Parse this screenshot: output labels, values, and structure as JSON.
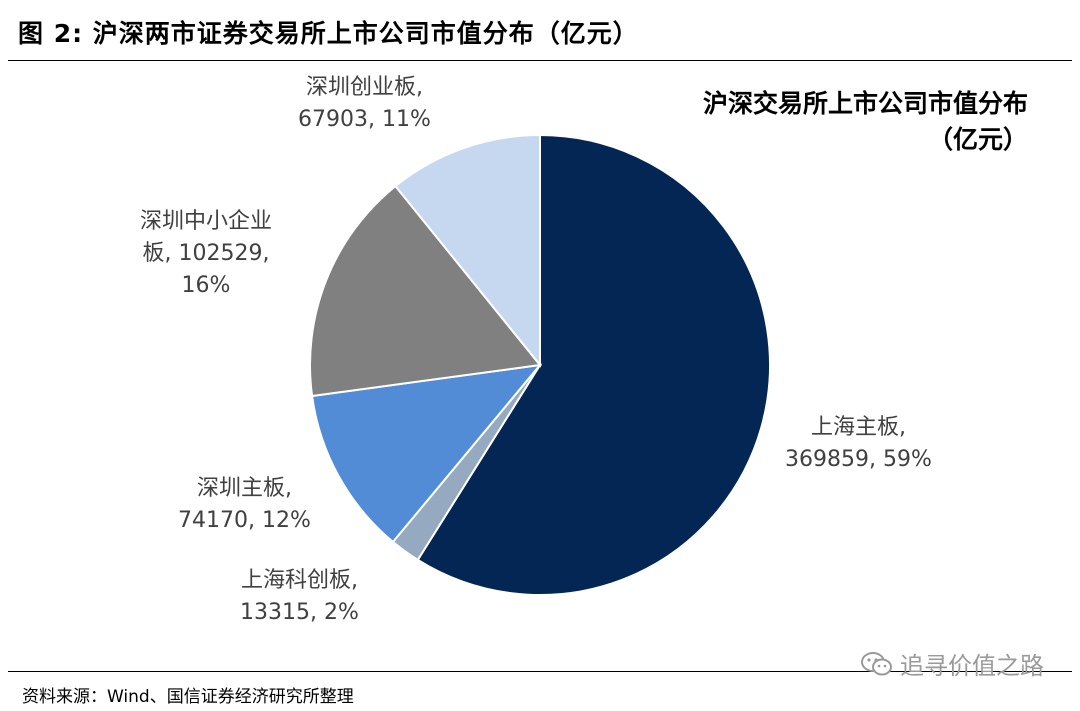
{
  "figure": {
    "title": "图 2:  沪深两市证券交易所上市公司市值分布（亿元）",
    "source": "资料来源：Wind、国信证券经济研究所整理",
    "watermark": "追寻价值之路"
  },
  "chart_data": {
    "type": "pie",
    "title_line1": "沪深交易所上市公司市值分布",
    "title_line2": "（亿元）",
    "start_angle": "12 o'clock",
    "direction": "clockwise",
    "slices": [
      {
        "name": "上海主板",
        "value": 369859,
        "percent": "59%",
        "color": "#032655",
        "label_line1": "上海主板,",
        "label_line2": "369859, 59%"
      },
      {
        "name": "上海科创板",
        "value": 13315,
        "percent": "2%",
        "color": "#95a9c0",
        "label_line1": "上海科创板,",
        "label_line2": "13315, 2%"
      },
      {
        "name": "深圳主板",
        "value": 74170,
        "percent": "12%",
        "color": "#528bd6",
        "label_line1": "深圳主板,",
        "label_line2": "74170, 12%"
      },
      {
        "name": "深圳中小企业板",
        "value": 102529,
        "percent": "16%",
        "color": "#808080",
        "label_line1": "深圳中小企业",
        "label_line2": "板, 102529,",
        "label_line3": "16%"
      },
      {
        "name": "深圳创业板",
        "value": 67903,
        "percent": "11%",
        "color": "#c6d7f0",
        "label_line1": "深圳创业板,",
        "label_line2": "67903, 11%"
      }
    ]
  }
}
